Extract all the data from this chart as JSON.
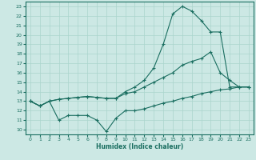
{
  "xlabel": "Humidex (Indice chaleur)",
  "bg_color": "#cce8e4",
  "grid_color": "#aad4cc",
  "line_color": "#1a6e60",
  "xlim": [
    -0.5,
    23.5
  ],
  "ylim": [
    9.5,
    23.5
  ],
  "xticks": [
    0,
    1,
    2,
    3,
    4,
    5,
    6,
    7,
    8,
    9,
    10,
    11,
    12,
    13,
    14,
    15,
    16,
    17,
    18,
    19,
    20,
    21,
    22,
    23
  ],
  "yticks": [
    10,
    11,
    12,
    13,
    14,
    15,
    16,
    17,
    18,
    19,
    20,
    21,
    22,
    23
  ],
  "series": [
    {
      "x": [
        0,
        1,
        2,
        3,
        4,
        5,
        6,
        7,
        8,
        9,
        10,
        11,
        12,
        13,
        14,
        15,
        16,
        17,
        18,
        19,
        20,
        21,
        22,
        23
      ],
      "y": [
        13,
        12.5,
        13,
        13.2,
        13.3,
        13.4,
        13.5,
        13.4,
        13.3,
        13.3,
        14,
        14.5,
        15.2,
        16.5,
        19,
        22.2,
        23,
        22.5,
        21.5,
        20.3,
        20.3,
        14.5,
        14.5,
        14.5
      ]
    },
    {
      "x": [
        0,
        1,
        2,
        3,
        4,
        5,
        6,
        7,
        8,
        9,
        10,
        11,
        12,
        13,
        14,
        15,
        16,
        17,
        18,
        19,
        20,
        21,
        22,
        23
      ],
      "y": [
        13,
        12.5,
        13,
        13.2,
        13.3,
        13.4,
        13.5,
        13.4,
        13.3,
        13.3,
        13.8,
        14,
        14.5,
        15,
        15.5,
        16,
        16.8,
        17.2,
        17.5,
        18.2,
        16,
        15.2,
        14.5,
        14.5
      ]
    },
    {
      "x": [
        0,
        1,
        2,
        3,
        4,
        5,
        6,
        7,
        8,
        9,
        10,
        11,
        12,
        13,
        14,
        15,
        16,
        17,
        18,
        19,
        20,
        21,
        22,
        23
      ],
      "y": [
        13,
        12.5,
        13,
        11,
        11.5,
        11.5,
        11.5,
        11,
        9.8,
        11.2,
        12,
        12,
        12.2,
        12.5,
        12.8,
        13,
        13.3,
        13.5,
        13.8,
        14,
        14.2,
        14.3,
        14.5,
        14.5
      ]
    }
  ]
}
